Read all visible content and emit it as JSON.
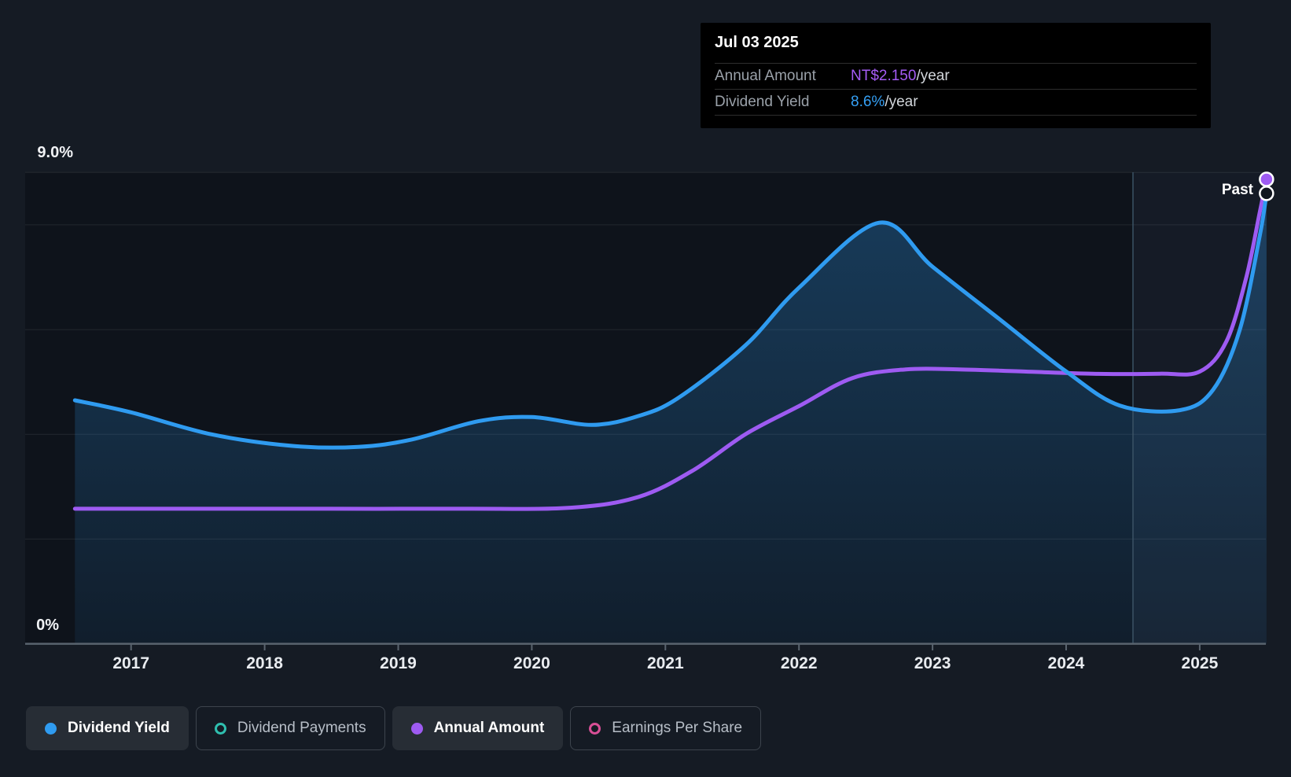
{
  "tooltip": {
    "date": "Jul 03 2025",
    "rows": [
      {
        "label": "Annual Amount",
        "value": "NT$2.150",
        "suffix": "/year",
        "color": "#A55CF5"
      },
      {
        "label": "Dividend Yield",
        "value": "8.6%",
        "suffix": "/year",
        "color": "#35A0F5"
      }
    ]
  },
  "past_label": "Past",
  "legend": [
    {
      "label": "Dividend Yield",
      "color": "#2F9BF0",
      "style": "filled",
      "state": "active"
    },
    {
      "label": "Dividend Payments",
      "color": "#2FBFAF",
      "style": "hollow",
      "state": "inactive"
    },
    {
      "label": "Annual Amount",
      "color": "#9E5BF2",
      "style": "filled",
      "state": "active"
    },
    {
      "label": "Earnings Per Share",
      "color": "#D84F96",
      "style": "hollow",
      "state": "inactive"
    }
  ],
  "colors": {
    "page_background": "#151B24",
    "plot_background": "#0E131B",
    "tooltip_background": "#000000",
    "baseline": "#59636E",
    "dividend_yield_line": "#2F9BF0",
    "annual_amount_line": "#9E5BF2"
  },
  "chart_data": {
    "type": "area",
    "x_axis": {
      "ticks": [
        2017,
        2018,
        2019,
        2020,
        2021,
        2022,
        2023,
        2024,
        2025
      ],
      "range": [
        2016.58,
        2025.5
      ]
    },
    "y_axis": {
      "unit": "%",
      "range": [
        0,
        9
      ],
      "gridlines_pct": [
        0,
        2,
        4,
        6,
        8,
        9
      ],
      "label_top": "9.0%",
      "label_bottom": "0%"
    },
    "past_divider_x": 2024.5,
    "legend_position": "bottom",
    "series": [
      {
        "name": "Dividend Yield",
        "unit": "%",
        "color": "#2F9BF0",
        "end_value": "8.6%",
        "points": [
          [
            2016.58,
            4.65
          ],
          [
            2017.0,
            4.42
          ],
          [
            2017.6,
            4.0
          ],
          [
            2018.2,
            3.78
          ],
          [
            2018.7,
            3.76
          ],
          [
            2019.1,
            3.9
          ],
          [
            2019.6,
            4.25
          ],
          [
            2020.0,
            4.33
          ],
          [
            2020.45,
            4.18
          ],
          [
            2020.8,
            4.35
          ],
          [
            2021.1,
            4.7
          ],
          [
            2021.6,
            5.7
          ],
          [
            2022.0,
            6.8
          ],
          [
            2022.6,
            8.04
          ],
          [
            2023.0,
            7.2
          ],
          [
            2023.5,
            6.2
          ],
          [
            2024.0,
            5.2
          ],
          [
            2024.4,
            4.55
          ],
          [
            2024.85,
            4.46
          ],
          [
            2025.1,
            4.85
          ],
          [
            2025.3,
            6.0
          ],
          [
            2025.45,
            7.8
          ],
          [
            2025.5,
            8.6
          ]
        ]
      },
      {
        "name": "Annual Amount",
        "unit": "NT$/year",
        "color": "#9E5BF2",
        "end_value": "NT$2.150",
        "points": [
          [
            2016.58,
            0.625
          ],
          [
            2017.5,
            0.625
          ],
          [
            2018.5,
            0.625
          ],
          [
            2019.5,
            0.625
          ],
          [
            2020.3,
            0.63
          ],
          [
            2020.8,
            0.68
          ],
          [
            2021.2,
            0.8
          ],
          [
            2021.6,
            0.97
          ],
          [
            2022.0,
            1.1
          ],
          [
            2022.4,
            1.23
          ],
          [
            2022.8,
            1.27
          ],
          [
            2023.2,
            1.27
          ],
          [
            2023.7,
            1.26
          ],
          [
            2024.2,
            1.25
          ],
          [
            2024.7,
            1.25
          ],
          [
            2025.0,
            1.26
          ],
          [
            2025.2,
            1.4
          ],
          [
            2025.35,
            1.7
          ],
          [
            2025.45,
            2.0
          ],
          [
            2025.5,
            2.15
          ]
        ]
      }
    ]
  }
}
